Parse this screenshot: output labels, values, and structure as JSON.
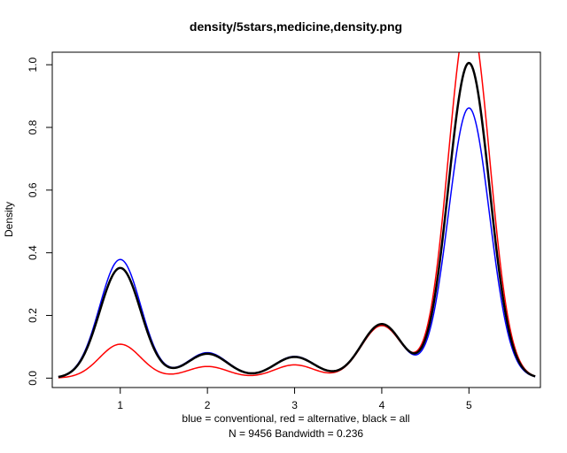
{
  "chart_data": {
    "type": "line",
    "title": "density/5stars,medicine,density.png",
    "xlabel_line1": "blue = conventional, red = alternative, black = all",
    "xlabel_line2": "N = 9456   Bandwidth = 0.236",
    "ylabel": "Density",
    "xlim": [
      0.22,
      5.82
    ],
    "ylim": [
      -0.03,
      1.04
    ],
    "x_ticks": [
      1,
      2,
      3,
      4,
      5
    ],
    "y_ticks": [
      0.0,
      0.2,
      0.4,
      0.6,
      0.8,
      1.0
    ],
    "x_tick_labels": [
      "1",
      "2",
      "3",
      "4",
      "5"
    ],
    "y_tick_labels": [
      "0.0",
      "0.2",
      "0.4",
      "0.6",
      "0.8",
      "1.0"
    ],
    "x_range": [
      0.29,
      5.76
    ],
    "components": [
      1,
      2,
      3,
      4,
      5
    ],
    "sigma": 0.236,
    "series": [
      {
        "color": "#0000ff",
        "stroke_width": 1.5,
        "weights": [
          0.224,
          0.048,
          0.041,
          0.101,
          0.51
        ]
      },
      {
        "color": "#ff0000",
        "stroke_width": 1.5,
        "weights": [
          0.064,
          0.022,
          0.025,
          0.099,
          0.69
        ]
      },
      {
        "color": "#000000",
        "stroke_width": 2.5,
        "weights": [
          0.208,
          0.046,
          0.04,
          0.102,
          0.595
        ]
      }
    ]
  }
}
